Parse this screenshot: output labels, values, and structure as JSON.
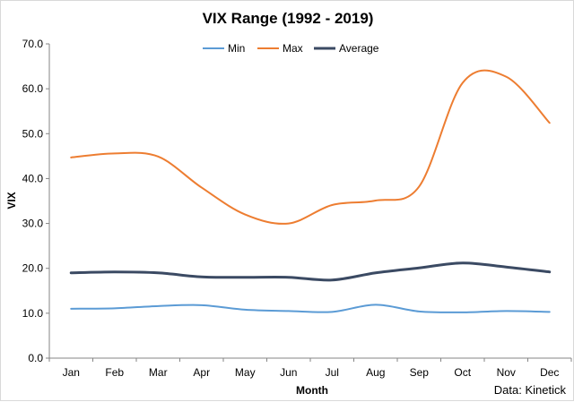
{
  "chart_data": {
    "type": "line",
    "title": "VIX Range (1992 - 2019)",
    "xlabel": "Month",
    "ylabel": "VIX",
    "source": "Data: Kinetick",
    "categories": [
      "Jan",
      "Feb",
      "Mar",
      "Apr",
      "May",
      "Jun",
      "Jul",
      "Aug",
      "Sep",
      "Oct",
      "Nov",
      "Dec"
    ],
    "ylim": [
      0,
      70
    ],
    "yticks": [
      "0.0",
      "10.0",
      "20.0",
      "30.0",
      "40.0",
      "50.0",
      "60.0",
      "70.0"
    ],
    "grid": false,
    "legend_position": "top",
    "series": [
      {
        "name": "Min",
        "color": "#5b9bd5",
        "values": [
          11.0,
          11.1,
          11.6,
          11.8,
          10.8,
          10.5,
          10.3,
          11.9,
          10.4,
          10.2,
          10.5,
          10.3
        ]
      },
      {
        "name": "Max",
        "color": "#ed7d31",
        "values": [
          44.7,
          45.6,
          44.9,
          38.0,
          32.0,
          30.0,
          34.1,
          35.1,
          38.2,
          61.3,
          62.7,
          52.4
        ]
      },
      {
        "name": "Average",
        "color": "#3b4a63",
        "values": [
          19.0,
          19.2,
          19.0,
          18.1,
          18.0,
          18.0,
          17.4,
          19.0,
          20.1,
          21.2,
          20.3,
          19.2
        ]
      }
    ]
  }
}
